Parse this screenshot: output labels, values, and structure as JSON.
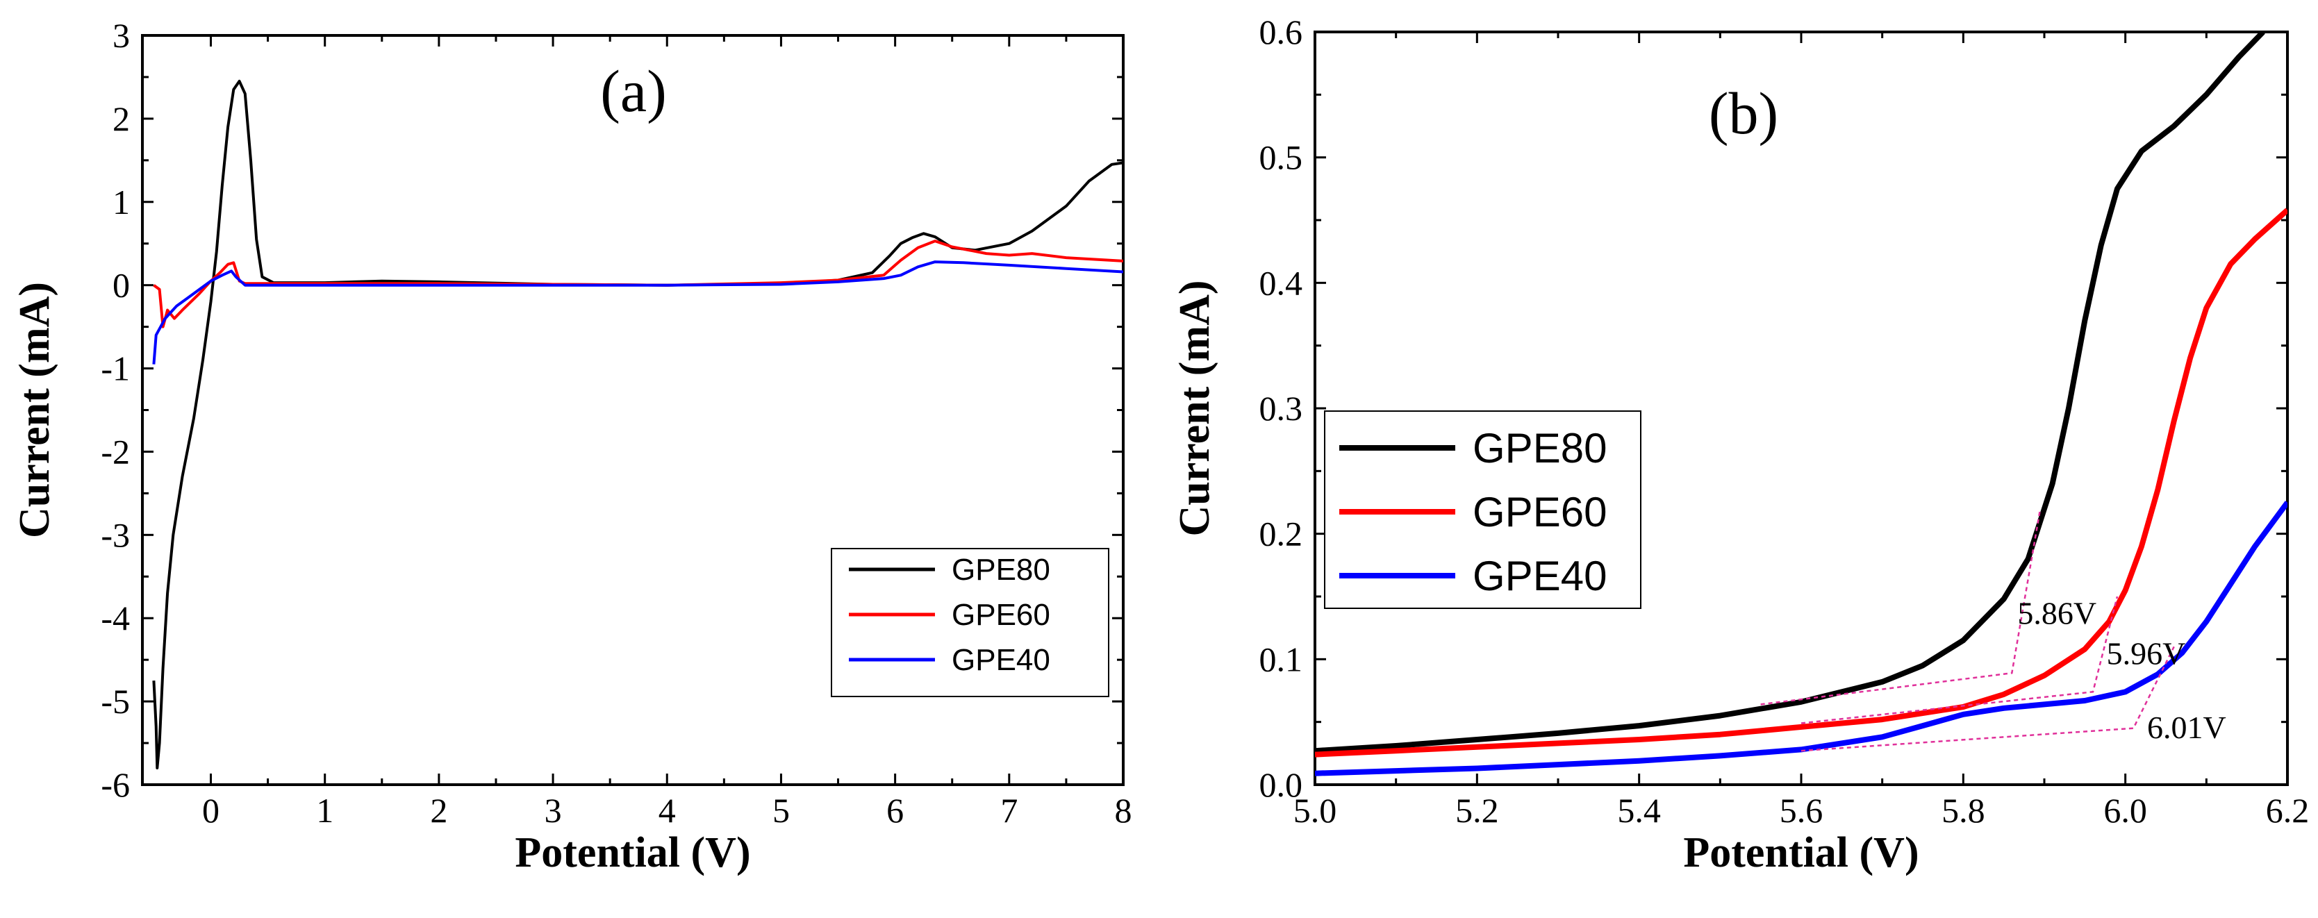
{
  "chart_data": [
    {
      "panel": "(a)",
      "type": "line",
      "xlabel": "Potential (V)",
      "ylabel": "Current (mA)",
      "xlim": [
        -0.6,
        8
      ],
      "ylim": [
        -6,
        3
      ],
      "x_ticks": [
        0,
        1,
        2,
        3,
        4,
        5,
        6,
        7,
        8
      ],
      "y_ticks": [
        -6,
        -5,
        -4,
        -3,
        -2,
        -1,
        0,
        1,
        2,
        3
      ],
      "legend": {
        "position": "bottom-right",
        "entries": [
          "GPE80",
          "GPE60",
          "GPE40"
        ]
      },
      "grid": false,
      "series": [
        {
          "name": "GPE80",
          "color": "#000000",
          "points": [
            [
              -0.5,
              -4.75
            ],
            [
              -0.48,
              -5.3
            ],
            [
              -0.47,
              -5.8
            ],
            [
              -0.45,
              -5.5
            ],
            [
              -0.42,
              -4.6
            ],
            [
              -0.38,
              -3.7
            ],
            [
              -0.33,
              -3.0
            ],
            [
              -0.25,
              -2.3
            ],
            [
              -0.15,
              -1.6
            ],
            [
              -0.07,
              -0.9
            ],
            [
              0.0,
              -0.2
            ],
            [
              0.05,
              0.4
            ],
            [
              0.1,
              1.2
            ],
            [
              0.15,
              1.9
            ],
            [
              0.2,
              2.35
            ],
            [
              0.25,
              2.45
            ],
            [
              0.3,
              2.3
            ],
            [
              0.35,
              1.5
            ],
            [
              0.4,
              0.55
            ],
            [
              0.45,
              0.1
            ],
            [
              0.55,
              0.03
            ],
            [
              1.0,
              0.03
            ],
            [
              1.5,
              0.05
            ],
            [
              2.0,
              0.04
            ],
            [
              3.0,
              0.01
            ],
            [
              4.0,
              0.0
            ],
            [
              5.0,
              0.02
            ],
            [
              5.5,
              0.06
            ],
            [
              5.8,
              0.15
            ],
            [
              5.95,
              0.35
            ],
            [
              6.05,
              0.5
            ],
            [
              6.15,
              0.57
            ],
            [
              6.25,
              0.62
            ],
            [
              6.35,
              0.58
            ],
            [
              6.5,
              0.45
            ],
            [
              6.7,
              0.42
            ],
            [
              7.0,
              0.5
            ],
            [
              7.2,
              0.65
            ],
            [
              7.5,
              0.95
            ],
            [
              7.7,
              1.25
            ],
            [
              7.9,
              1.45
            ],
            [
              8.0,
              1.47
            ]
          ]
        },
        {
          "name": "GPE60",
          "color": "#ff0000",
          "points": [
            [
              -0.5,
              0.0
            ],
            [
              -0.45,
              -0.05
            ],
            [
              -0.42,
              -0.5
            ],
            [
              -0.38,
              -0.3
            ],
            [
              -0.32,
              -0.4
            ],
            [
              -0.25,
              -0.3
            ],
            [
              -0.1,
              -0.1
            ],
            [
              0.0,
              0.05
            ],
            [
              0.08,
              0.15
            ],
            [
              0.15,
              0.25
            ],
            [
              0.2,
              0.27
            ],
            [
              0.25,
              0.05
            ],
            [
              0.3,
              0.02
            ],
            [
              1.0,
              0.02
            ],
            [
              2.0,
              0.02
            ],
            [
              3.0,
              0.01
            ],
            [
              4.0,
              0.0
            ],
            [
              5.0,
              0.03
            ],
            [
              5.5,
              0.06
            ],
            [
              5.9,
              0.12
            ],
            [
              6.05,
              0.3
            ],
            [
              6.2,
              0.45
            ],
            [
              6.35,
              0.53
            ],
            [
              6.5,
              0.46
            ],
            [
              6.8,
              0.38
            ],
            [
              7.0,
              0.36
            ],
            [
              7.2,
              0.38
            ],
            [
              7.5,
              0.33
            ],
            [
              8.0,
              0.29
            ]
          ]
        },
        {
          "name": "GPE40",
          "color": "#0000ff",
          "points": [
            [
              -0.5,
              -0.95
            ],
            [
              -0.48,
              -0.6
            ],
            [
              -0.4,
              -0.4
            ],
            [
              -0.3,
              -0.25
            ],
            [
              -0.2,
              -0.15
            ],
            [
              -0.1,
              -0.05
            ],
            [
              0.0,
              0.05
            ],
            [
              0.1,
              0.12
            ],
            [
              0.18,
              0.17
            ],
            [
              0.22,
              0.1
            ],
            [
              0.3,
              0.0
            ],
            [
              1.0,
              0.0
            ],
            [
              2.0,
              0.0
            ],
            [
              3.0,
              0.0
            ],
            [
              4.0,
              0.0
            ],
            [
              5.0,
              0.01
            ],
            [
              5.5,
              0.04
            ],
            [
              5.9,
              0.08
            ],
            [
              6.05,
              0.12
            ],
            [
              6.2,
              0.22
            ],
            [
              6.35,
              0.28
            ],
            [
              6.6,
              0.27
            ],
            [
              7.0,
              0.24
            ],
            [
              7.5,
              0.2
            ],
            [
              8.0,
              0.16
            ]
          ]
        }
      ]
    },
    {
      "panel": "(b)",
      "type": "line",
      "xlabel": "Potential (V)",
      "ylabel": "Current (mA)",
      "xlim": [
        5.0,
        6.2
      ],
      "ylim": [
        0.0,
        0.6
      ],
      "x_ticks": [
        "5.0",
        "5.2",
        "5.4",
        "5.6",
        "5.8",
        "6.0",
        "6.2"
      ],
      "y_ticks": [
        "0.0",
        "0.1",
        "0.2",
        "0.3",
        "0.4",
        "0.5",
        "0.6"
      ],
      "legend": {
        "position": "center-left",
        "entries": [
          "GPE80",
          "GPE60",
          "GPE40"
        ]
      },
      "grid": false,
      "annotations": [
        "5.86V",
        "5.96V",
        "6.01V"
      ],
      "series": [
        {
          "name": "GPE80",
          "color": "#000000",
          "points": [
            [
              5.0,
              0.027
            ],
            [
              5.1,
              0.031
            ],
            [
              5.2,
              0.036
            ],
            [
              5.3,
              0.041
            ],
            [
              5.4,
              0.047
            ],
            [
              5.5,
              0.055
            ],
            [
              5.6,
              0.066
            ],
            [
              5.7,
              0.082
            ],
            [
              5.75,
              0.095
            ],
            [
              5.8,
              0.115
            ],
            [
              5.85,
              0.148
            ],
            [
              5.88,
              0.18
            ],
            [
              5.91,
              0.24
            ],
            [
              5.93,
              0.3
            ],
            [
              5.95,
              0.37
            ],
            [
              5.97,
              0.43
            ],
            [
              5.99,
              0.475
            ],
            [
              6.02,
              0.505
            ],
            [
              6.06,
              0.525
            ],
            [
              6.1,
              0.55
            ],
            [
              6.14,
              0.58
            ],
            [
              6.17,
              0.6
            ]
          ]
        },
        {
          "name": "GPE60",
          "color": "#ff0000",
          "points": [
            [
              5.0,
              0.024
            ],
            [
              5.1,
              0.027
            ],
            [
              5.2,
              0.03
            ],
            [
              5.3,
              0.033
            ],
            [
              5.4,
              0.036
            ],
            [
              5.5,
              0.04
            ],
            [
              5.6,
              0.046
            ],
            [
              5.7,
              0.052
            ],
            [
              5.8,
              0.062
            ],
            [
              5.85,
              0.072
            ],
            [
              5.9,
              0.087
            ],
            [
              5.95,
              0.108
            ],
            [
              5.98,
              0.13
            ],
            [
              6.0,
              0.155
            ],
            [
              6.02,
              0.19
            ],
            [
              6.04,
              0.235
            ],
            [
              6.06,
              0.29
            ],
            [
              6.08,
              0.34
            ],
            [
              6.1,
              0.38
            ],
            [
              6.13,
              0.415
            ],
            [
              6.16,
              0.435
            ],
            [
              6.2,
              0.458
            ]
          ]
        },
        {
          "name": "GPE40",
          "color": "#0000ff",
          "points": [
            [
              5.0,
              0.009
            ],
            [
              5.1,
              0.011
            ],
            [
              5.2,
              0.013
            ],
            [
              5.3,
              0.016
            ],
            [
              5.4,
              0.019
            ],
            [
              5.5,
              0.023
            ],
            [
              5.6,
              0.028
            ],
            [
              5.7,
              0.038
            ],
            [
              5.75,
              0.047
            ],
            [
              5.8,
              0.056
            ],
            [
              5.85,
              0.061
            ],
            [
              5.9,
              0.064
            ],
            [
              5.95,
              0.067
            ],
            [
              6.0,
              0.074
            ],
            [
              6.04,
              0.088
            ],
            [
              6.07,
              0.105
            ],
            [
              6.1,
              0.13
            ],
            [
              6.13,
              0.16
            ],
            [
              6.16,
              0.19
            ],
            [
              6.2,
              0.225
            ]
          ]
        }
      ]
    }
  ]
}
